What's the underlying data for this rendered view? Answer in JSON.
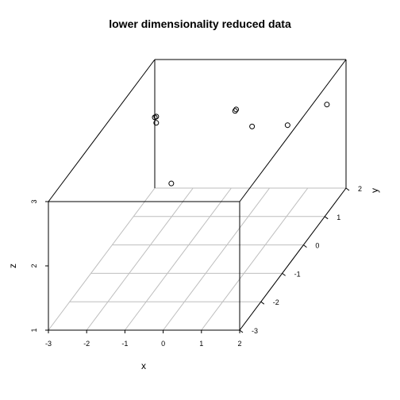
{
  "chart_data": {
    "type": "scatter",
    "title": "lower dimensionality reduced data",
    "xlabel": "x",
    "ylabel": "y",
    "zlabel": "z",
    "xlim": [
      -3,
      2
    ],
    "ylim": [
      -3,
      2
    ],
    "zlim": [
      1,
      3
    ],
    "x_ticks": [
      "-3",
      "-2",
      "-1",
      "0",
      "1",
      "2"
    ],
    "y_ticks": [
      "-3",
      "-2",
      "-1",
      "0",
      "1",
      "2"
    ],
    "z_ticks": [
      "1",
      "2",
      "3"
    ],
    "grid": true,
    "points": [
      {
        "x": -3.0,
        "y": 2.0,
        "z": 2.1
      },
      {
        "x": -2.6,
        "y": 1.35,
        "z": 2.4
      },
      {
        "x": -0.9,
        "y": 2.0,
        "z": 2.2
      },
      {
        "x": -0.65,
        "y": 1.6,
        "z": 2.4
      },
      {
        "x": -2.1,
        "y": 0.45,
        "z": 2.7
      },
      {
        "x": 0.1,
        "y": 1.0,
        "z": 2.4
      },
      {
        "x": 1.5,
        "y": 2.0,
        "z": 2.3
      },
      {
        "x": 0.75,
        "y": 1.5,
        "z": 2.2
      },
      {
        "x": -1.4,
        "y": -0.1,
        "z": 2.0
      }
    ]
  }
}
